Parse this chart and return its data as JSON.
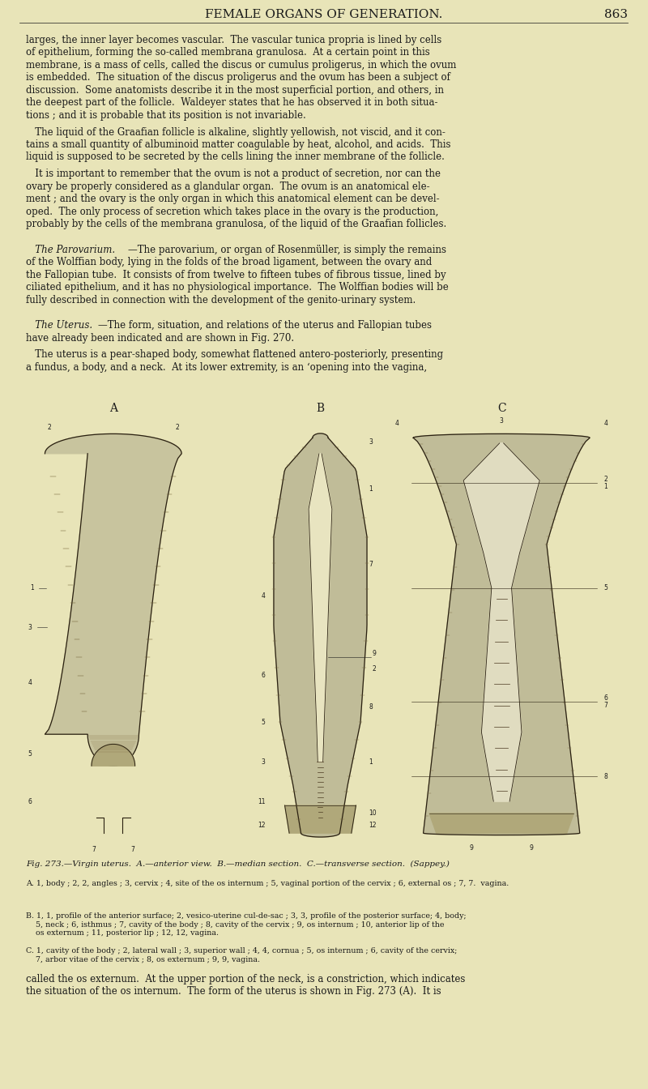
{
  "bg_color": "#e8e4b8",
  "page_width": 8.0,
  "page_height": 13.44,
  "header_text": "FEMALE ORGANS OF GENERATION.",
  "page_number": "863",
  "header_fontsize": 11,
  "body_fontsize": 8.5,
  "caption_fontsize": 7.5,
  "legend_fontsize": 6.8,
  "text_color": "#1a1a1a",
  "body_text_1": "larges, the inner layer becomes vascular.  The vascular tunica propria is lined by cells\nof epithelium, forming the so-called membrana granulosa.  At a certain point in this\nmembrane, is a mass of cells, called the discus or cumulus proligerus, in which the ovum\nis embedded.  The situation of the discus proligerus and the ovum has been a subject of\ndiscussion.  Some anatomists describe it in the most superficial portion, and others, in\nthe deepest part of the follicle.  Waldeyer states that he has observed it in both situa-\ntions ; and it is probable that its position is not invariable.",
  "body_text_2": "   The liquid of the Graafian follicle is alkaline, slightly yellowish, not viscid, and it con-\ntains a small quantity of albuminoid matter coagulable by heat, alcohol, and acids.  This\nliquid is supposed to be secreted by the cells lining the inner membrane of the follicle.",
  "body_text_3": "   It is important to remember that the ovum is not a product of secretion, nor can the\novary be properly considered as a glandular organ.  The ovum is an anatomical ele-\nment ; and the ovary is the only organ in which this anatomical element can be devel-\noped.  The only process of secretion which takes place in the ovary is the production,\nprobably by the cells of the membrana granulosa, of the liquid of the Graafian follicles.",
  "parovarium_title": "   The Parovarium.",
  "parovarium_text": "—The parovarium, or organ of Rosenmüller, is simply the remains\nof the Wolffian body, lying in the folds of the broad ligament, between the ovary and\nthe Fallopian tube.  It consists of from twelve to fifteen tubes of fibrous tissue, lined by\nciliated epithelium, and it has no physiological importance.  The Wolffian bodies will be\nfully described in connection with the development of the genito-urinary system.",
  "uterus_title": "   The Uterus.",
  "uterus_text_1": "—The form, situation, and relations of the uterus and Fallopian tubes\nhave already been indicated and are shown in Fig. 270.",
  "uterus_text_2": "   The uterus is a pear-shaped body, somewhat flattened antero-posteriorly, presenting\na fundus, a body, and a neck.  At its lower extremity, is an ‘opening into the vagina,",
  "figure_label_A": "A",
  "figure_label_B": "B",
  "figure_label_C": "C",
  "figure_caption": "Fig. 273.—Virgin uterus.  A.—anterior view.  B.—median section.  C.—transverse section.  (Sappey.)",
  "legend_A": "A. 1, body ; 2, 2, angles ; 3, cervix ; 4, site of the os internum ; 5, vaginal portion of the cervix ; 6, external os ; 7, 7.  vagina.",
  "legend_B": "B. 1, 1, profile of the anterior surface; 2, vesico-uterine cul-de-sac ; 3, 3, profile of the posterior surface; 4, body;\n    5, neck ; 6, isthmus ; 7, cavity of the body ; 8, cavity of the cervix ; 9, os internum ; 10, anterior lip of the\n    os externum ; 11, posterior lip ; 12, 12, vagina.",
  "legend_C": "C. 1, cavity of the body ; 2, lateral wall ; 3, superior wall ; 4, 4, cornua ; 5, os internum ; 6, cavity of the cervix;\n    7, arbor vitae of the cervix ; 8, os externum ; 9, 9, vagina.",
  "footer_text_1": "called the os externum.  At the upper portion of the neck, is a constriction, which indicates",
  "footer_text_2": "the situation of the os internum.  The form of the uterus is shown in Fig. 273 (A).  It is"
}
